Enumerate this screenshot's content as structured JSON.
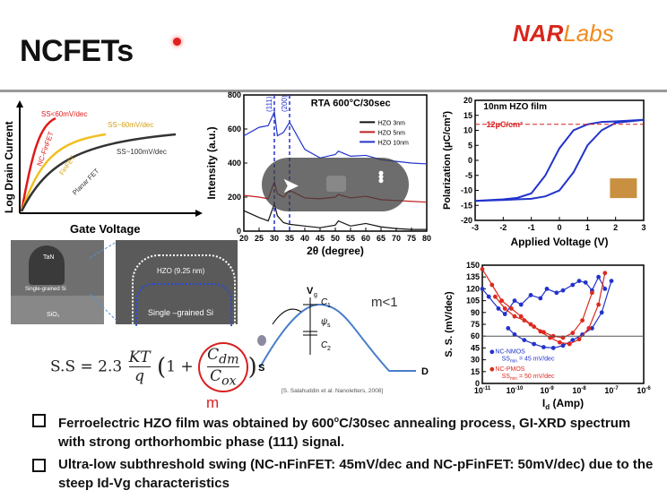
{
  "slide": {
    "title": "NCFETs",
    "logo": {
      "main": "NAR",
      "accent": "Labs"
    }
  },
  "schematic": {
    "ylabel": "Log Drain Current",
    "xlabel": "Gate Voltage",
    "curves": [
      "SS<60mV/dec",
      "NC-FinFET",
      "SS~60mV/dec",
      "FinFET",
      "SS~100mV/dec",
      "Planar FET"
    ]
  },
  "tem": {
    "left_labels": [
      "TaN",
      "Single-grained Si",
      "SiO₂"
    ],
    "right_labels": [
      "HZO (9.25 nm)",
      "Single –grained Si"
    ]
  },
  "energy_diagram": {
    "labels": [
      "V",
      "g",
      "C",
      "1",
      "ψ",
      "s",
      "C",
      "2",
      "S",
      "D"
    ],
    "note": "m<1",
    "citation": "[S. Salahuddin et al. Nanoletters, 2008]"
  },
  "formula": {
    "lhs": "S.S = 2.3",
    "kt": "KT",
    "q": "q",
    "cdm": "C",
    "cdm_sub": "dm",
    "cox": "C",
    "cox_sub": "ox",
    "m_label": "m"
  },
  "chart_data": [
    {
      "type": "line",
      "title": "RTA 600°C/30sec",
      "xlabel": "2θ (degree)",
      "ylabel": "Intensity (a.u.)",
      "xlim": [
        20,
        80
      ],
      "ylim": [
        0,
        800
      ],
      "xticks": [
        20,
        25,
        30,
        35,
        40,
        45,
        50,
        55,
        60,
        65,
        70,
        75,
        80
      ],
      "yticks": [
        0,
        200,
        400,
        600,
        800
      ],
      "peak_labels": [
        "(111)",
        "(200)"
      ],
      "series": [
        {
          "name": "HZO 3nm",
          "color": "#111111",
          "x": [
            20,
            25,
            28,
            30,
            31,
            33,
            35,
            40,
            45,
            50,
            51,
            55,
            60,
            65,
            70,
            75,
            80
          ],
          "y": [
            120,
            80,
            60,
            160,
            90,
            50,
            40,
            30,
            20,
            35,
            60,
            30,
            45,
            25,
            15,
            10,
            10
          ]
        },
        {
          "name": "HZO 5nm",
          "color": "#c0201c",
          "x": [
            20,
            25,
            28,
            30,
            31,
            33,
            35,
            40,
            45,
            50,
            51,
            55,
            60,
            65,
            70,
            75,
            80
          ],
          "y": [
            210,
            200,
            190,
            290,
            220,
            200,
            240,
            195,
            190,
            200,
            215,
            195,
            205,
            185,
            180,
            175,
            170
          ]
        },
        {
          "name": "HZO 10nm",
          "color": "#2233cc",
          "x": [
            20,
            25,
            28,
            30,
            31,
            33,
            35,
            40,
            45,
            50,
            51,
            55,
            60,
            65,
            70,
            75,
            80
          ],
          "y": [
            560,
            610,
            620,
            700,
            560,
            580,
            640,
            480,
            430,
            450,
            470,
            440,
            445,
            420,
            410,
            400,
            395
          ]
        }
      ]
    },
    {
      "type": "line",
      "title": "10nm HZO film",
      "xlabel": "Applied Voltage (V)",
      "ylabel": "Polarization (μC/cm²)",
      "xlim": [
        -3,
        3
      ],
      "ylim": [
        -20,
        20
      ],
      "xticks": [
        -3,
        -2,
        -1,
        0,
        1,
        2,
        3
      ],
      "yticks": [
        -20,
        -15,
        -10,
        -5,
        0,
        5,
        10,
        15,
        20
      ],
      "annotation": "12μC/cm²",
      "series": [
        {
          "name": "upper",
          "color": "#2233cc",
          "x": [
            -3,
            -2,
            -1.5,
            -1,
            -0.5,
            0,
            0.5,
            1,
            1.5,
            2,
            3
          ],
          "y": [
            -13.5,
            -13,
            -12.5,
            -11,
            -5,
            4,
            10,
            12,
            12.8,
            13,
            13.5
          ]
        },
        {
          "name": "lower",
          "color": "#2233cc",
          "x": [
            3,
            2,
            1.5,
            1,
            0.5,
            0,
            -0.5,
            -1,
            -1.5,
            -2,
            -3
          ],
          "y": [
            13.5,
            12.5,
            10,
            5,
            -4,
            -10,
            -12,
            -12.8,
            -13,
            -13.2,
            -13.5
          ]
        }
      ]
    },
    {
      "type": "scatter",
      "xlabel": "I",
      "xlabel_sub": "d",
      "xlabel_unit": " (Amp)",
      "ylabel": "S. S. (mV/dec)",
      "xlim_exp": [
        -11,
        -6
      ],
      "ylim": [
        0,
        150
      ],
      "xticks": [
        "10",
        "10",
        "10",
        "10",
        "10",
        "10"
      ],
      "xtick_exps": [
        "-11",
        "-10",
        "-9",
        "-8",
        "-7",
        "-6"
      ],
      "yticks": [
        0,
        15,
        30,
        45,
        60,
        75,
        90,
        105,
        120,
        135,
        150
      ],
      "legend": [
        "NC-NMOS",
        "SS",
        "min",
        " = 45 mV/dec",
        "NC-PMOS",
        "SS",
        "min",
        " = 50 mV/dec"
      ],
      "series": [
        {
          "name": "NC-NMOS",
          "color": "#2233cc",
          "x": [
            -11,
            -10.8,
            -10.5,
            -10.3,
            -10,
            -9.8,
            -9.5,
            -9.2,
            -9,
            -8.7,
            -8.5,
            -8.2,
            -8,
            -7.8,
            -7.6,
            -7.4,
            -7.2
          ],
          "y": [
            120,
            110,
            95,
            88,
            105,
            100,
            112,
            108,
            120,
            115,
            118,
            125,
            130,
            128,
            118,
            135,
            120
          ]
        },
        {
          "name": "NC-NMOS-2",
          "color": "#2233cc",
          "x": [
            -10.2,
            -10,
            -9.7,
            -9.4,
            -9.1,
            -8.8,
            -8.5,
            -8.2,
            -7.9,
            -7.6,
            -7.3,
            -7
          ],
          "y": [
            70,
            62,
            55,
            50,
            46,
            45,
            48,
            55,
            62,
            70,
            90,
            130
          ]
        },
        {
          "name": "NC-PMOS",
          "color": "#dd2a1e",
          "x": [
            -11,
            -10.7,
            -10.4,
            -10.1,
            -9.8,
            -9.5,
            -9.2,
            -8.9,
            -8.6,
            -8.3,
            -8,
            -7.7,
            -7.4,
            -7.2
          ],
          "y": [
            145,
            125,
            105,
            95,
            85,
            75,
            66,
            58,
            52,
            50,
            56,
            70,
            100,
            140
          ]
        },
        {
          "name": "NC-PMOS-2",
          "color": "#dd2a1e",
          "x": [
            -10.6,
            -10.3,
            -10,
            -9.7,
            -9.4,
            -9.1,
            -8.8,
            -8.5,
            -8.2,
            -7.9,
            -7.6
          ],
          "y": [
            110,
            95,
            85,
            80,
            72,
            65,
            60,
            58,
            64,
            80,
            115
          ]
        }
      ]
    }
  ],
  "bullets": [
    {
      "pre": "Ferroelectric HZO film was obtained by 600",
      "sup": "o",
      "post": "C/30sec annealing process, GI-XRD spectrum with strong orthorhombic phase (111) signal."
    },
    {
      "pre": "Ultra-low subthreshold swing (NC-nFinFET: 45mV/dec and NC-pFinFET: 50mV/dec) due to the steep Id-Vg characteristics",
      "sup": "",
      "post": ""
    }
  ]
}
